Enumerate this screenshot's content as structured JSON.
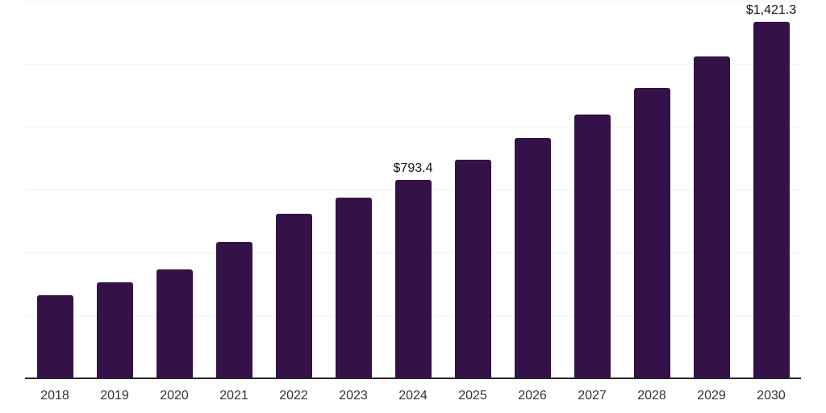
{
  "chart_data": {
    "type": "bar",
    "title": "",
    "xlabel": "",
    "ylabel": "",
    "categories": [
      "2018",
      "2019",
      "2020",
      "2021",
      "2022",
      "2023",
      "2024",
      "2025",
      "2026",
      "2027",
      "2028",
      "2029",
      "2030"
    ],
    "values": [
      332.0,
      383.5,
      434.5,
      545.0,
      656.5,
      721.0,
      793.4,
      871.0,
      957.0,
      1052.5,
      1158.0,
      1282.0,
      1421.3
    ],
    "point_labels": [
      "",
      "",
      "",
      "",
      "",
      "",
      "$793.4",
      "",
      "",
      "",
      "",
      "",
      "$1,421.3"
    ],
    "ylim": [
      0,
      1500
    ],
    "grid_step": 250,
    "grid": true,
    "legend": false,
    "colors": {
      "bar": "#341148",
      "gridline": "#f0f0f0",
      "axis": "#262626",
      "value_label": "#111111",
      "tick_label": "#333333",
      "background": "#ffffff"
    }
  }
}
